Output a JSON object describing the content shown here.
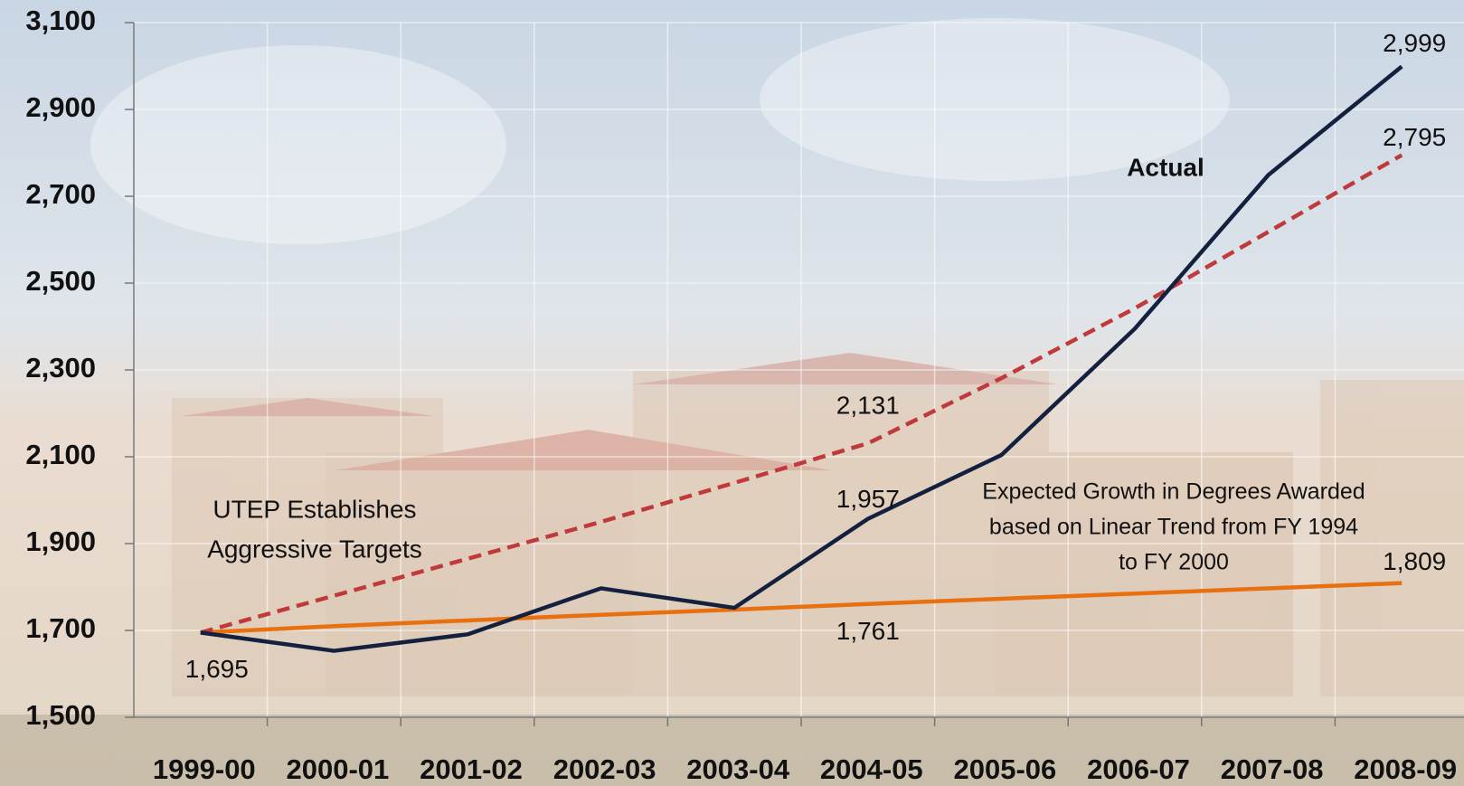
{
  "chart_data": {
    "type": "line",
    "categories": [
      "1999-00",
      "2000-01",
      "2001-02",
      "2002-03",
      "2003-04",
      "2004-05",
      "2005-06",
      "2006-07",
      "2007-08",
      "2008-09"
    ],
    "series": [
      {
        "name": "Actual",
        "color": "#13213f",
        "dash": false,
        "values": [
          1695,
          1653,
          1691,
          1797,
          1752,
          1957,
          2104,
          2395,
          2749,
          2999
        ],
        "value_labels": [
          "1,695",
          null,
          null,
          null,
          null,
          "1,957",
          null,
          null,
          null,
          "2,999"
        ]
      },
      {
        "color": "#c0393b",
        "dash": true,
        "label_lines": [
          "UTEP Establishes",
          "Aggressive Targets"
        ],
        "values": [
          1695,
          1780,
          1865,
          1950,
          2040,
          2131,
          2281,
          2442,
          2618,
          2795
        ],
        "value_labels": [
          null,
          null,
          null,
          null,
          null,
          "2,131",
          null,
          null,
          null,
          "2,795"
        ]
      },
      {
        "color": "#e8700f",
        "dash": false,
        "label_lines": [
          "Expected Growth in Degrees Awarded",
          "based on Linear Trend from FY 1994",
          "to FY 2000"
        ],
        "values": [
          1695,
          1710,
          1723,
          1736,
          1748,
          1761,
          1773,
          1785,
          1797,
          1809
        ],
        "value_labels": [
          null,
          null,
          null,
          null,
          null,
          "1,761",
          null,
          null,
          null,
          "1,809"
        ]
      }
    ],
    "ylim": [
      1500,
      3100
    ],
    "yticks": [
      {
        "value": 1500,
        "label": "1,500"
      },
      {
        "value": 1700,
        "label": "1,700"
      },
      {
        "value": 1900,
        "label": "1,900"
      },
      {
        "value": 2100,
        "label": "2,100"
      },
      {
        "value": 2300,
        "label": "2,300"
      },
      {
        "value": 2500,
        "label": "2,500"
      },
      {
        "value": 2700,
        "label": "2,700"
      },
      {
        "value": 2900,
        "label": "2,900"
      },
      {
        "value": 3100,
        "label": "3,100"
      }
    ],
    "grid": true
  }
}
